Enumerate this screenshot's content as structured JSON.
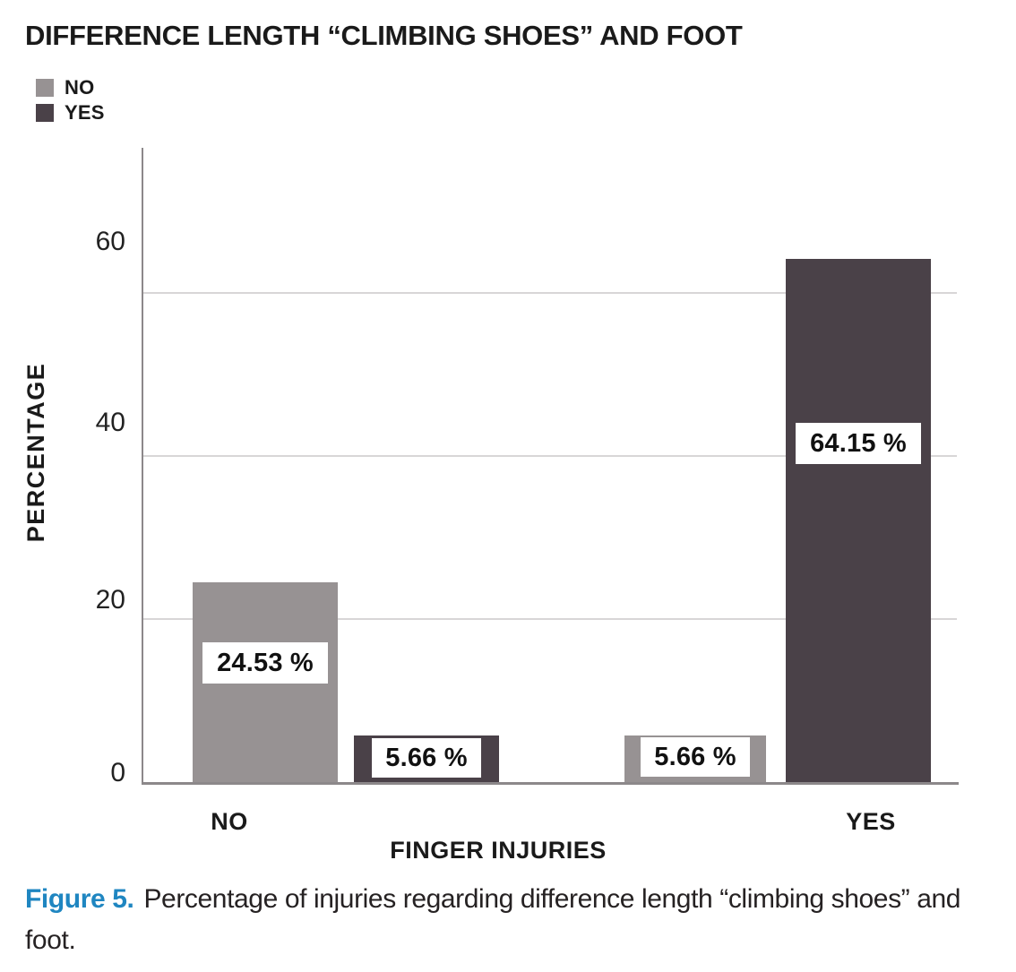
{
  "chart_data": {
    "type": "bar",
    "title": "DIFFERENCE LENGTH “CLIMBING SHOES” AND FOOT",
    "xlabel": "FINGER INJURIES",
    "ylabel": "PERCENTAGE",
    "categories": [
      "NO",
      "YES"
    ],
    "series": [
      {
        "name": "NO",
        "color": "#979293",
        "values": [
          24.53,
          5.66
        ],
        "value_labels": [
          "24.53 %",
          "5.66 %"
        ]
      },
      {
        "name": "YES",
        "color": "#4A4148",
        "values": [
          5.66,
          64.15
        ],
        "value_labels": [
          "5.66 %",
          "64.15 %"
        ]
      }
    ],
    "yticks": [
      0,
      20,
      40,
      60
    ],
    "ylim": [
      0,
      78
    ],
    "grid": true,
    "legend_position": "top-left",
    "colors": {
      "grid": "#D8D6D7",
      "axis": "#8C888A",
      "text": "#1A1A1A"
    }
  },
  "caption": {
    "prefix": "Figure 5.",
    "text": "Percentage of injuries regarding difference length “climbing shoes” and foot.",
    "prefix_color": "#1F86C1"
  }
}
